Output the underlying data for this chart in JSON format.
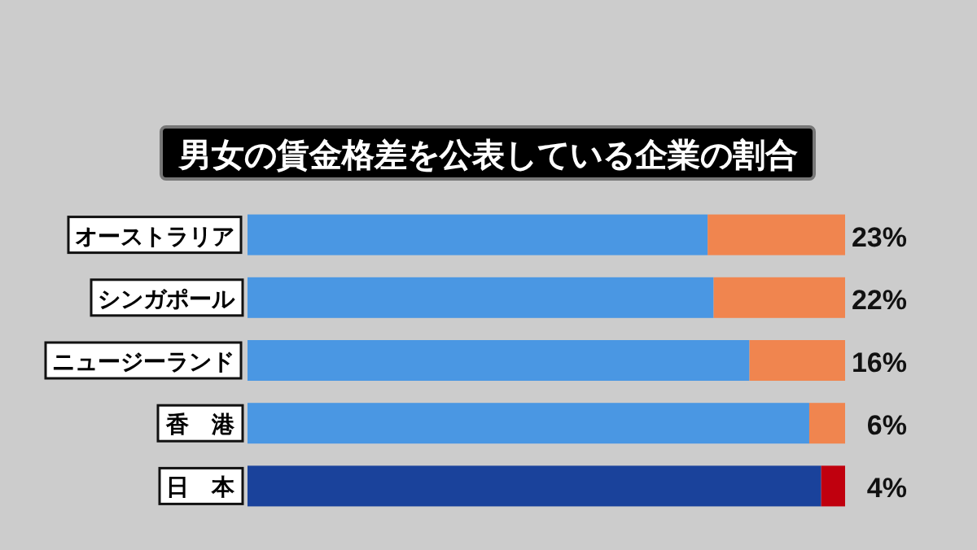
{
  "chart_data": {
    "type": "bar",
    "title": "男女の賃金格差を公表している企業の割合",
    "orientation": "horizontal",
    "stacked": true,
    "categories": [
      "オーストラリア",
      "シンガポール",
      "ニュージーランド",
      "香　港",
      "日　本"
    ],
    "series": [
      {
        "colors": [
          "#4a97e3",
          "#4a97e3",
          "#4a97e3",
          "#4a97e3",
          "#1a429b"
        ],
        "values": [
          77,
          78,
          84,
          94,
          96
        ]
      },
      {
        "colors": [
          "#f0854f",
          "#f0854f",
          "#f0854f",
          "#f0854f",
          "#c0000e"
        ],
        "values": [
          23,
          22,
          16,
          6,
          4
        ],
        "value_labels": [
          "23%",
          "22%",
          "16%",
          "6%",
          "4%"
        ]
      }
    ]
  }
}
